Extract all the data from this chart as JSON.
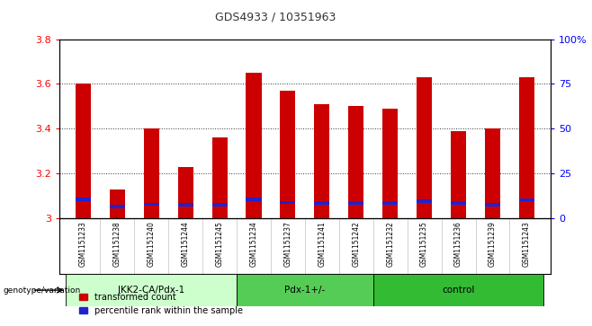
{
  "title": "GDS4933 / 10351963",
  "samples": [
    "GSM1151233",
    "GSM1151238",
    "GSM1151240",
    "GSM1151244",
    "GSM1151245",
    "GSM1151234",
    "GSM1151237",
    "GSM1151241",
    "GSM1151242",
    "GSM1151232",
    "GSM1151235",
    "GSM1151236",
    "GSM1151239",
    "GSM1151243"
  ],
  "transformed_count": [
    3.6,
    3.13,
    3.4,
    3.23,
    3.36,
    3.65,
    3.57,
    3.51,
    3.5,
    3.49,
    3.63,
    3.39,
    3.4,
    3.63
  ],
  "percentile_top": [
    3.095,
    3.06,
    3.07,
    3.068,
    3.067,
    3.095,
    3.078,
    3.075,
    3.075,
    3.075,
    3.085,
    3.075,
    3.068,
    3.09
  ],
  "percentile_bottom": [
    3.075,
    3.045,
    3.055,
    3.053,
    3.052,
    3.075,
    3.063,
    3.06,
    3.06,
    3.06,
    3.07,
    3.06,
    3.053,
    3.075
  ],
  "ymin": 3.0,
  "ymax": 3.8,
  "yticks": [
    3.0,
    3.2,
    3.4,
    3.6,
    3.8
  ],
  "ytick_labels": [
    "3",
    "3.2",
    "3.4",
    "3.6",
    "3.8"
  ],
  "right_ytick_positions": [
    3.0,
    3.2,
    3.4,
    3.6,
    3.8
  ],
  "right_ylabels": [
    "0",
    "25",
    "50",
    "75",
    "100%"
  ],
  "groups": [
    {
      "label": "IKK2-CA/Pdx-1",
      "start": 0,
      "end": 5,
      "color": "#ccffcc"
    },
    {
      "label": "Pdx-1+/-",
      "start": 5,
      "end": 9,
      "color": "#55cc55"
    },
    {
      "label": "control",
      "start": 9,
      "end": 14,
      "color": "#33bb33"
    }
  ],
  "bar_color": "#cc0000",
  "percentile_color": "#2222cc",
  "bg_color": "#ffffff",
  "tick_bg_color": "#cccccc",
  "grid_color": "#333333",
  "title_color": "#333333",
  "legend_items": [
    "transformed count",
    "percentile rank within the sample"
  ],
  "legend_colors": [
    "#cc0000",
    "#2222cc"
  ],
  "bar_width": 0.45
}
